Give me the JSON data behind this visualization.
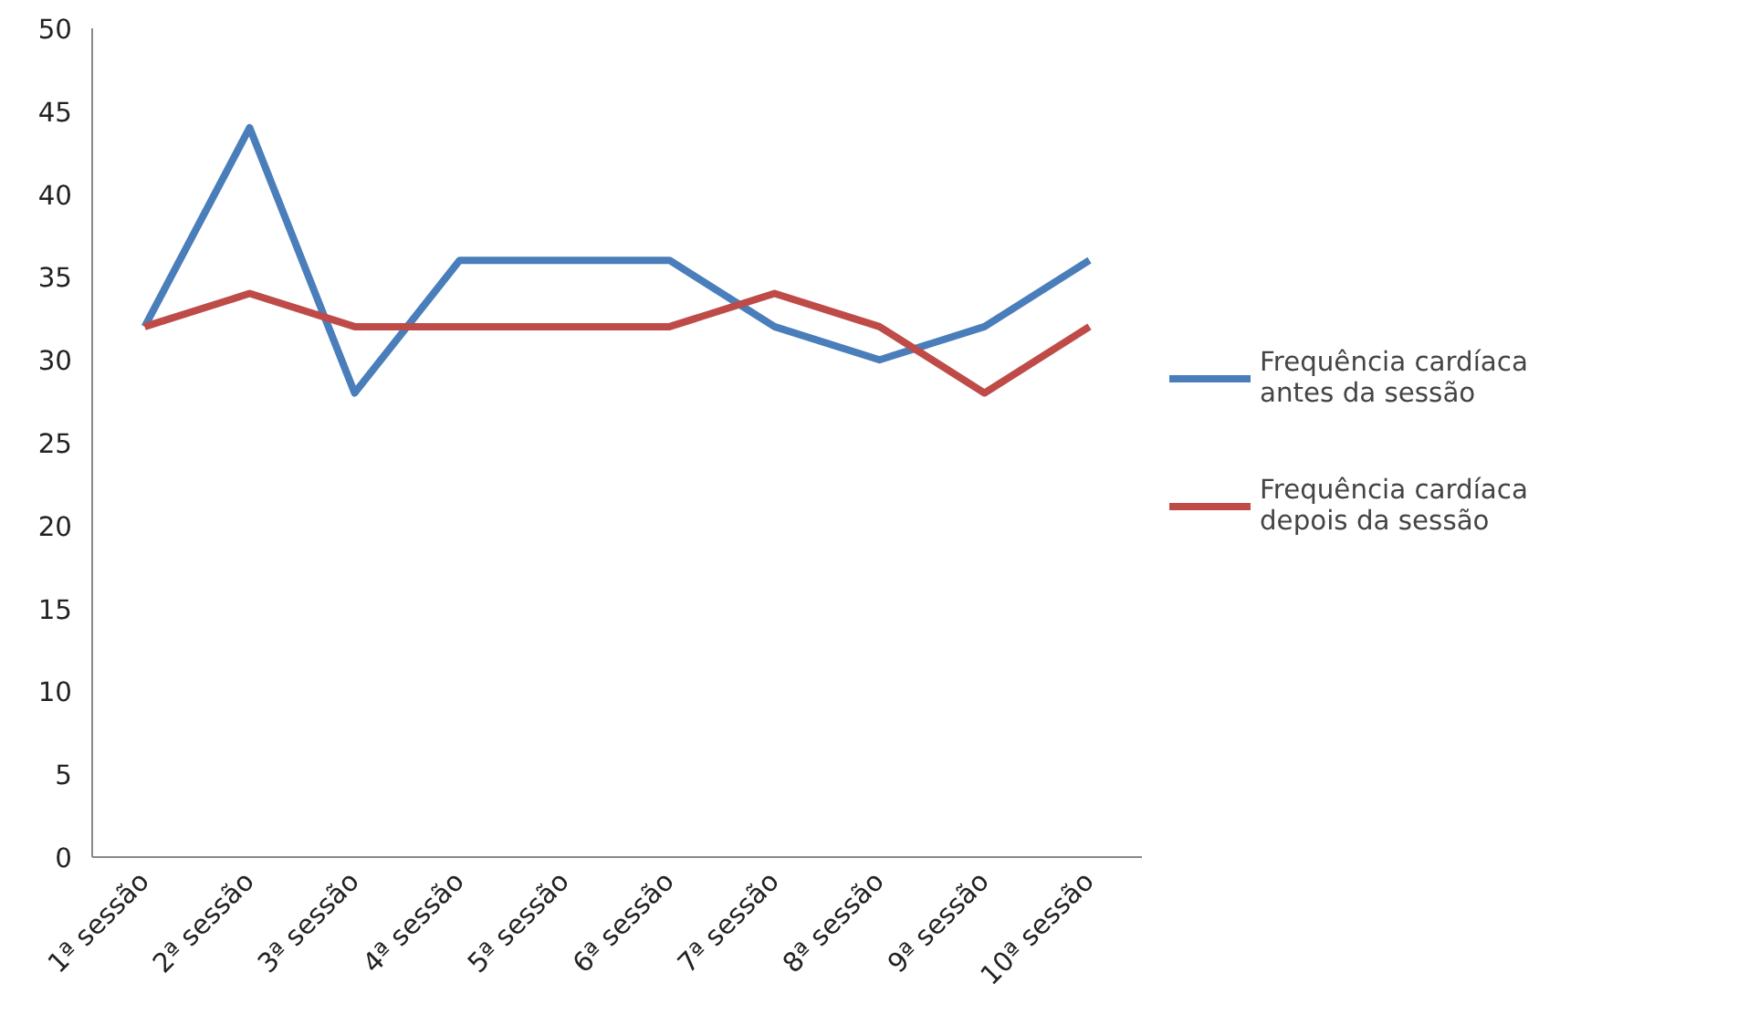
{
  "chart_data": {
    "type": "line",
    "categories": [
      "1ª sessão",
      "2ª sessão",
      "3ª sessão",
      "4ª sessão",
      "5ª sessão",
      "6ª sessão",
      "7ª sessão",
      "8ª sessão",
      "9ª sessão",
      "10ª sessão"
    ],
    "series": [
      {
        "name": "Frequência cardíaca antes da sessão",
        "color": "#4a7ebb",
        "values": [
          32,
          44,
          28,
          36,
          36,
          36,
          32,
          30,
          32,
          36
        ]
      },
      {
        "name": "Frequência cardíaca depois da sessão",
        "color": "#be4b48",
        "values": [
          32,
          34,
          32,
          32,
          32,
          32,
          34,
          32,
          28,
          32
        ]
      }
    ],
    "ylim": [
      0,
      50
    ],
    "yticks": [
      0,
      5,
      10,
      15,
      20,
      25,
      30,
      35,
      40,
      45,
      50
    ],
    "grid": false,
    "legend": "right",
    "marker": "none"
  }
}
